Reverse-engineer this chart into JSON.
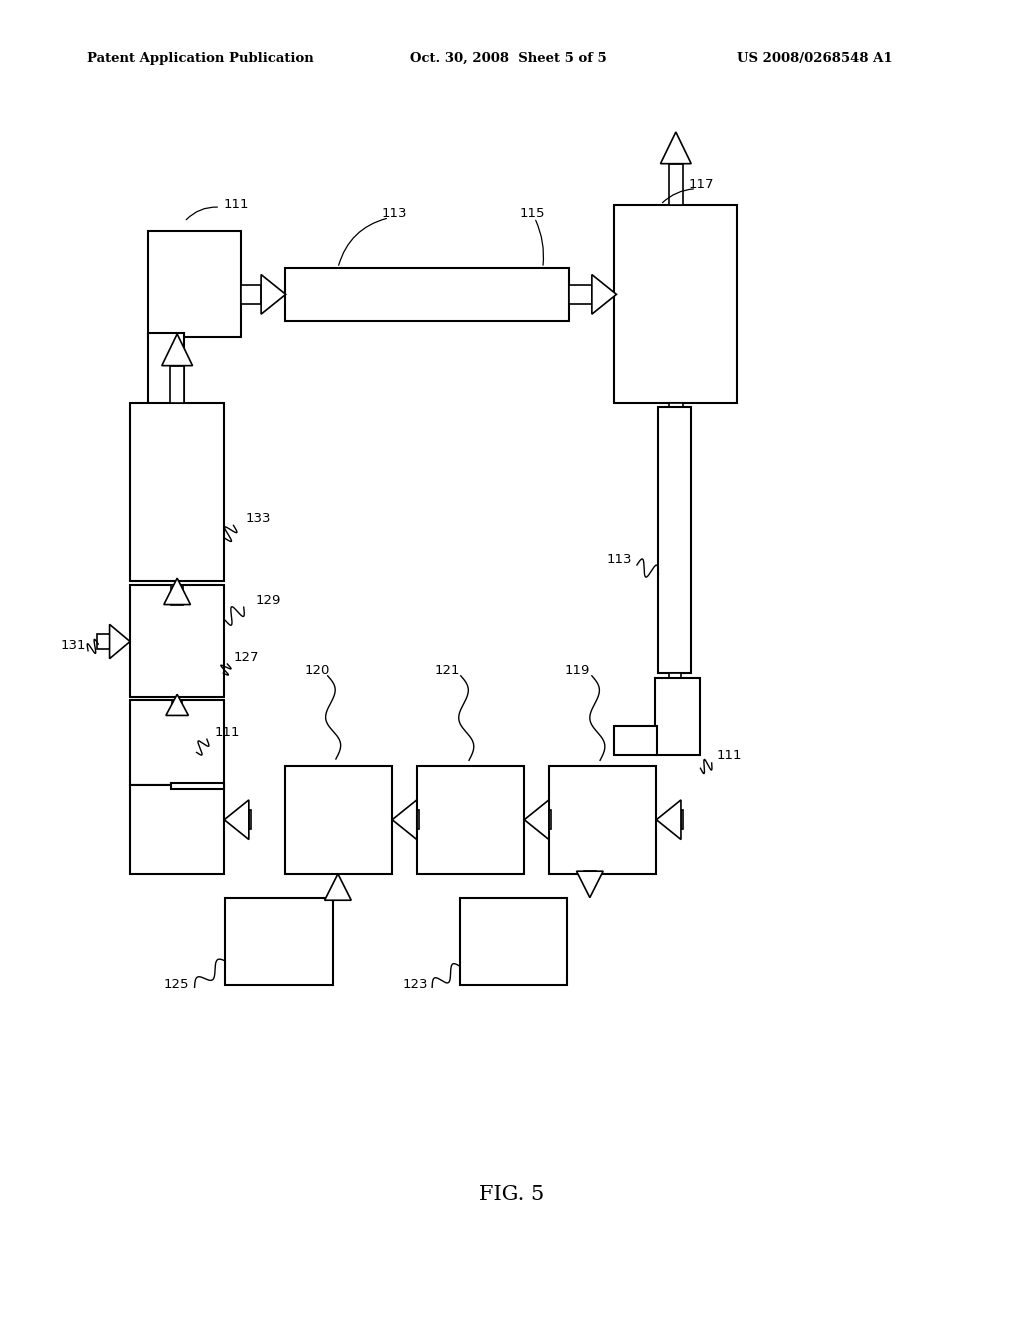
{
  "bg_color": "#ffffff",
  "line_color": "#000000",
  "header_left": "Patent Application Publication",
  "header_mid": "Oct. 30, 2008  Sheet 5 of 5",
  "header_right": "US 2008/0268548 A1",
  "fig_label": "FIG. 5"
}
